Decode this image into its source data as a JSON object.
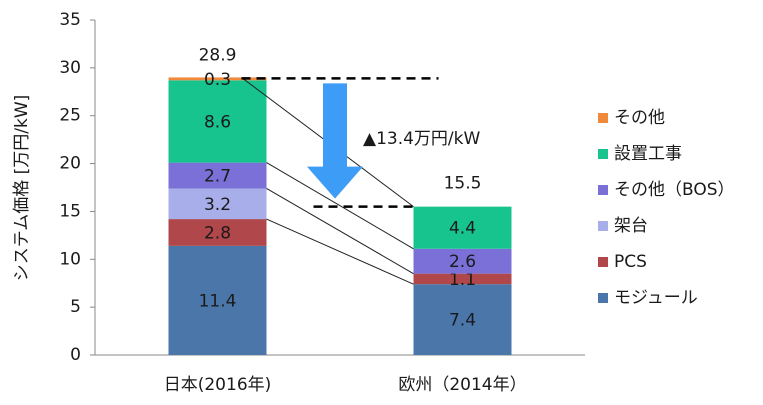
{
  "chart_data": {
    "type": "stacked_bar",
    "categories": [
      "日本(2016年)",
      "欧州（2014年）"
    ],
    "series": [
      {
        "name": "モジュール",
        "color": "#4a76aa",
        "values": [
          11.4,
          7.4
        ]
      },
      {
        "name": "PCS",
        "color": "#b0474a",
        "values": [
          2.8,
          1.1
        ]
      },
      {
        "name": "架台",
        "color": "#a8aeea",
        "values": [
          3.2,
          null
        ]
      },
      {
        "name": "その他（BOS）",
        "color": "#7a70d8",
        "values": [
          2.7,
          2.6
        ]
      },
      {
        "name": "設置工事",
        "color": "#17c48e",
        "values": [
          8.6,
          4.4
        ]
      },
      {
        "name": "その他",
        "color": "#ef8a3c",
        "values": [
          0.3,
          null
        ]
      }
    ],
    "totals": [
      28.9,
      15.5
    ],
    "annotation": "▲13.4万円/kW",
    "ylabel": "システム価格 [万円/kW]",
    "ylim": [
      0,
      35
    ],
    "yticks": [
      0,
      5,
      10,
      15,
      20,
      25,
      30,
      35
    ],
    "legend": "right",
    "grid": false
  }
}
